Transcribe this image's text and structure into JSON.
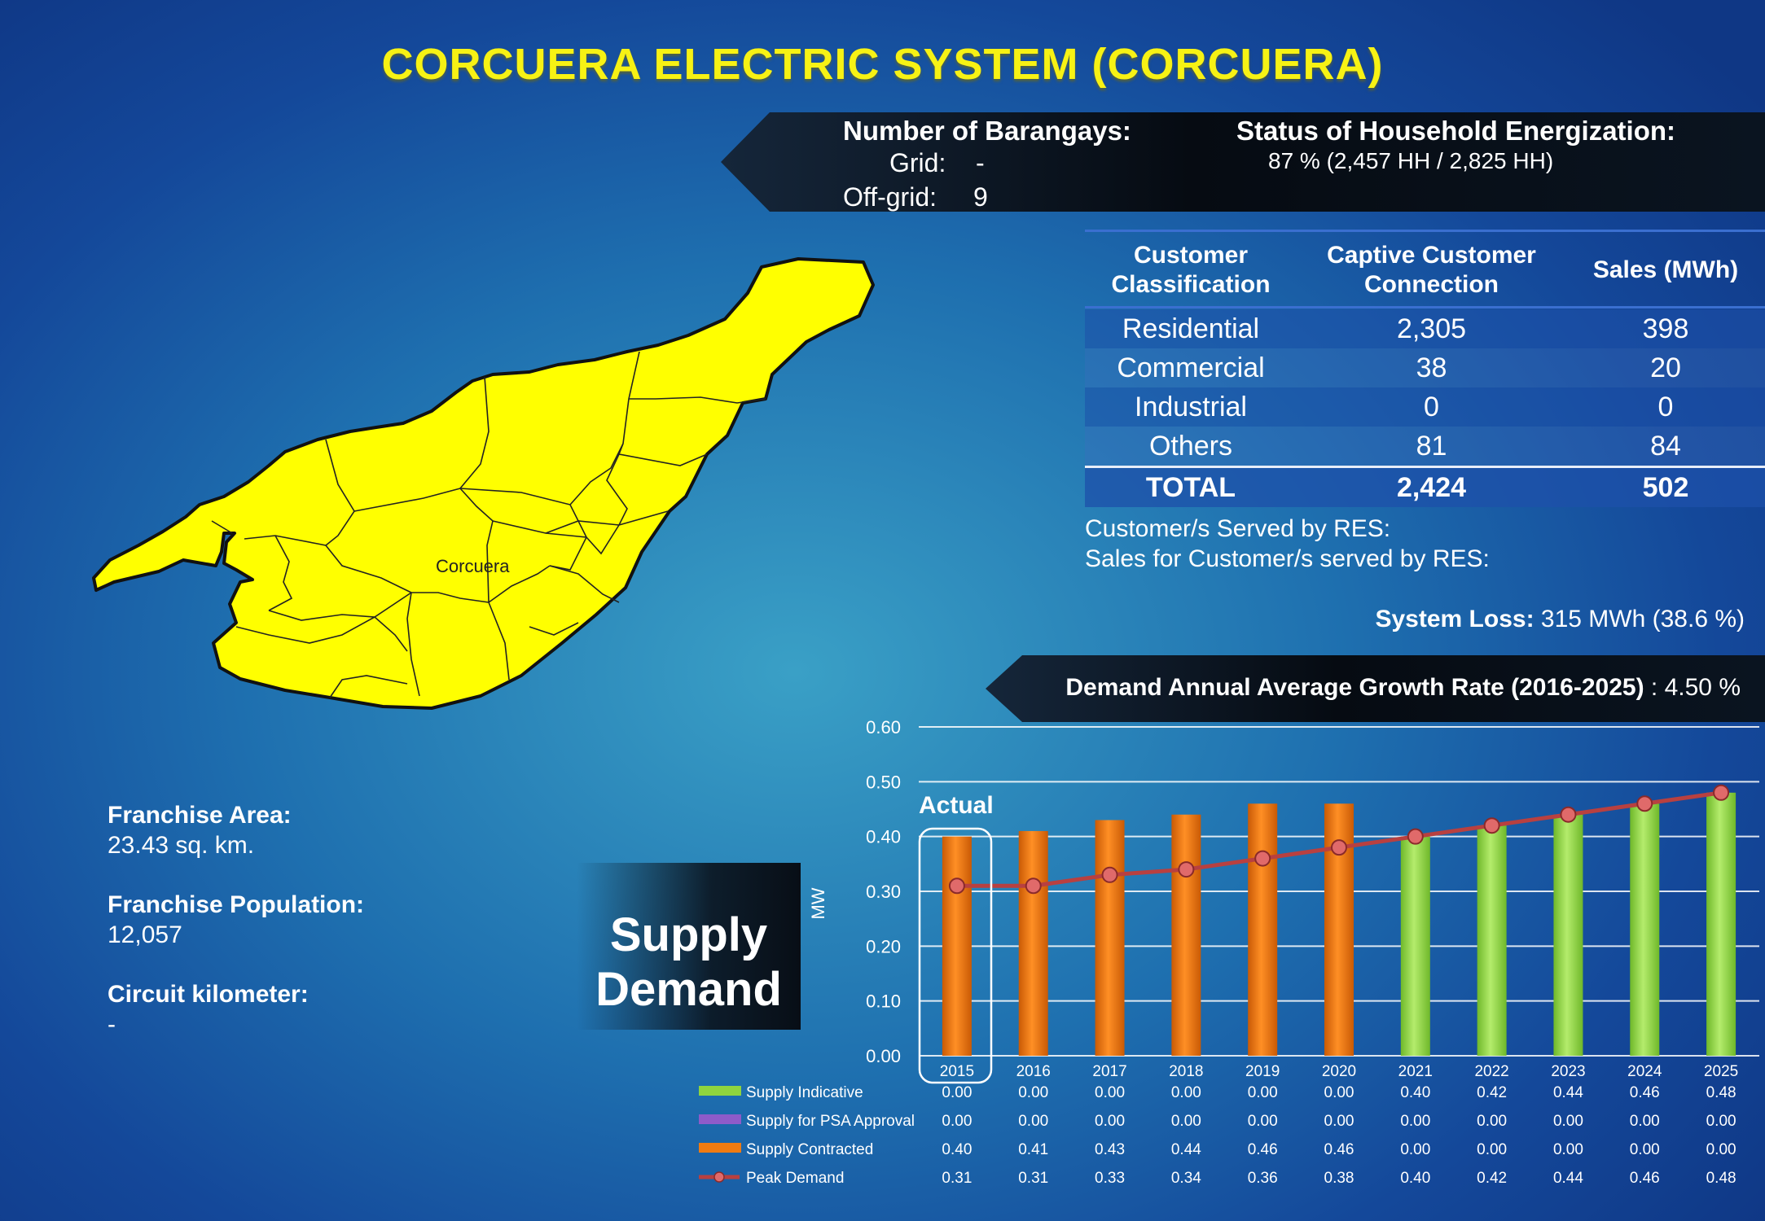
{
  "title": "CORCUERA ELECTRIC SYSTEM (CORCUERA)",
  "barangays": {
    "heading": "Number of Barangays:",
    "grid_label": "Grid:",
    "grid_value": "-",
    "offgrid_label": "Off-grid:",
    "offgrid_value": "9"
  },
  "energization": {
    "heading": "Status of Household Energization:",
    "value": "87 % (2,457 HH /  2,825 HH)"
  },
  "customer_table": {
    "headers": [
      "Customer\nClassification",
      "Captive Customer\nConnection",
      "Sales (MWh)"
    ],
    "rows": [
      {
        "classification": "Residential",
        "connections": "2,305",
        "sales": "398"
      },
      {
        "classification": "Commercial",
        "connections": "38",
        "sales": "20"
      },
      {
        "classification": "Industrial",
        "connections": "0",
        "sales": "0"
      },
      {
        "classification": "Others",
        "connections": "81",
        "sales": "84"
      }
    ],
    "total": {
      "classification": "TOTAL",
      "connections": "2,424",
      "sales": "502"
    }
  },
  "res": {
    "served_label": "Customer/s Served by RES:",
    "sales_label": "Sales for Customer/s served by RES:"
  },
  "system_loss": {
    "label": "System Loss:",
    "value": "315 MWh (38.6 %)"
  },
  "growth": {
    "label": "Demand Annual Average Growth Rate (2016-2025)",
    "value": ": 4.50 %"
  },
  "map_label": "Corcuera",
  "franchise": {
    "area_label": "Franchise Area:",
    "area_value": "23.43 sq. km.",
    "population_label": "Franchise Population:",
    "population_value": "12,057",
    "circuit_label": "Circuit kilometer:",
    "circuit_value": "-"
  },
  "supply_demand_label": {
    "line1": "Supply",
    "line2": "Demand"
  },
  "colors": {
    "supply_indicative": "#8fd43e",
    "supply_psa": "#8e5bc9",
    "supply_contracted": "#f07b12",
    "peak_demand": "#b84040",
    "title": "#f7f214",
    "map_fill": "#ffff00"
  },
  "chart_data": {
    "type": "bar",
    "ylabel": "MW",
    "ylim": [
      0,
      0.6
    ],
    "yticks": [
      "0.00",
      "0.10",
      "0.20",
      "0.30",
      "0.40",
      "0.50",
      "0.60"
    ],
    "annotation": "Actual",
    "categories": [
      "2015",
      "2016",
      "2017",
      "2018",
      "2019",
      "2020",
      "2021",
      "2022",
      "2023",
      "2024",
      "2025"
    ],
    "series": [
      {
        "name": "Supply Indicative",
        "kind": "bar",
        "values": [
          0.0,
          0.0,
          0.0,
          0.0,
          0.0,
          0.0,
          0.4,
          0.42,
          0.44,
          0.46,
          0.48
        ]
      },
      {
        "name": "Supply for PSA Approval",
        "kind": "bar",
        "values": [
          0.0,
          0.0,
          0.0,
          0.0,
          0.0,
          0.0,
          0.0,
          0.0,
          0.0,
          0.0,
          0.0
        ]
      },
      {
        "name": "Supply Contracted",
        "kind": "bar",
        "values": [
          0.4,
          0.41,
          0.43,
          0.44,
          0.46,
          0.46,
          0.0,
          0.0,
          0.0,
          0.0,
          0.0
        ]
      },
      {
        "name": "Peak Demand",
        "kind": "line",
        "values": [
          0.31,
          0.31,
          0.33,
          0.34,
          0.36,
          0.38,
          0.4,
          0.42,
          0.44,
          0.46,
          0.48
        ]
      }
    ],
    "table_values": [
      [
        "0.00",
        "0.00",
        "0.00",
        "0.00",
        "0.00",
        "0.00",
        "0.40",
        "0.42",
        "0.44",
        "0.46",
        "0.48"
      ],
      [
        "0.00",
        "0.00",
        "0.00",
        "0.00",
        "0.00",
        "0.00",
        "0.00",
        "0.00",
        "0.00",
        "0.00",
        "0.00"
      ],
      [
        "0.40",
        "0.41",
        "0.43",
        "0.44",
        "0.46",
        "0.46",
        "0.00",
        "0.00",
        "0.00",
        "0.00",
        "0.00"
      ],
      [
        "0.31",
        "0.31",
        "0.33",
        "0.34",
        "0.36",
        "0.38",
        "0.40",
        "0.42",
        "0.44",
        "0.46",
        "0.48"
      ]
    ]
  }
}
